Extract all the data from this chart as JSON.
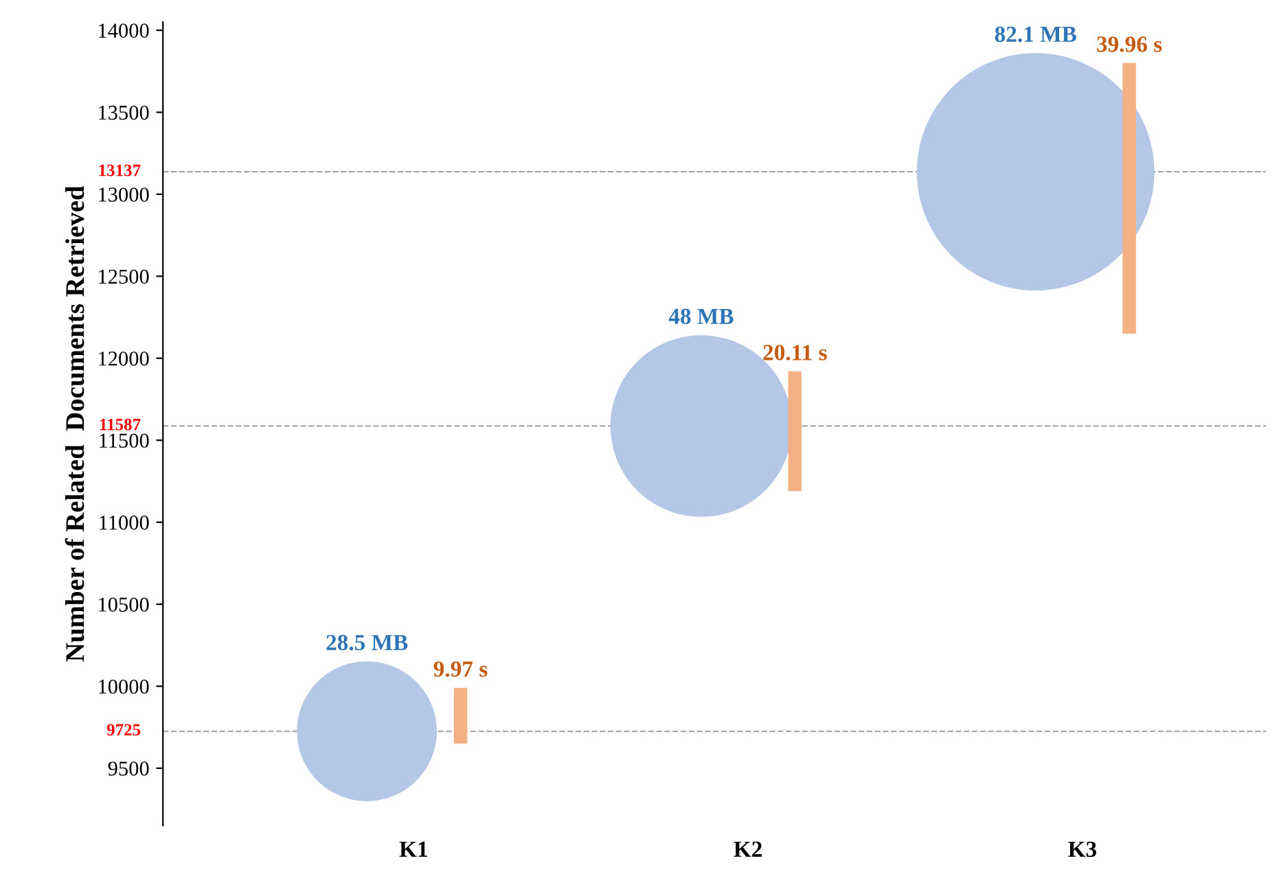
{
  "chart_data": {
    "type": "bubble",
    "ylabel": "Number of Related  Documents Retrieved",
    "categories": [
      "K1",
      "K2",
      "K3"
    ],
    "series": [
      {
        "color": "#b4c7e7",
        "values": [
          9725,
          11587,
          13137
        ],
        "sizes": [
          28.5,
          48,
          82.1
        ],
        "value_labels": [
          "28.5 MB",
          "48 MB",
          "82.1 MB"
        ]
      },
      {
        "type": "bar",
        "color": "#f4b183",
        "base": [
          9650,
          11190,
          12150
        ],
        "values": [
          340,
          730,
          1650
        ]
      }
    ],
    "annotations": [
      "9.97 s",
      "20.11 s",
      "39.96 s"
    ],
    "ylim": [
      9150,
      14050
    ],
    "yticks": [
      9500,
      10000,
      10500,
      11000,
      11500,
      12000,
      12500,
      13000,
      13500,
      14000
    ],
    "ref_lines": [
      {
        "axis": "y",
        "value": 9725,
        "label": "9725",
        "color": "#aaaaaa",
        "line_style": "dashed"
      },
      {
        "axis": "y",
        "value": 11587,
        "label": "11587",
        "color": "#aaaaaa",
        "line_style": "dashed"
      },
      {
        "axis": "y",
        "value": 13137,
        "label": "13137",
        "color": "#aaaaaa",
        "line_style": "dashed"
      }
    ]
  }
}
